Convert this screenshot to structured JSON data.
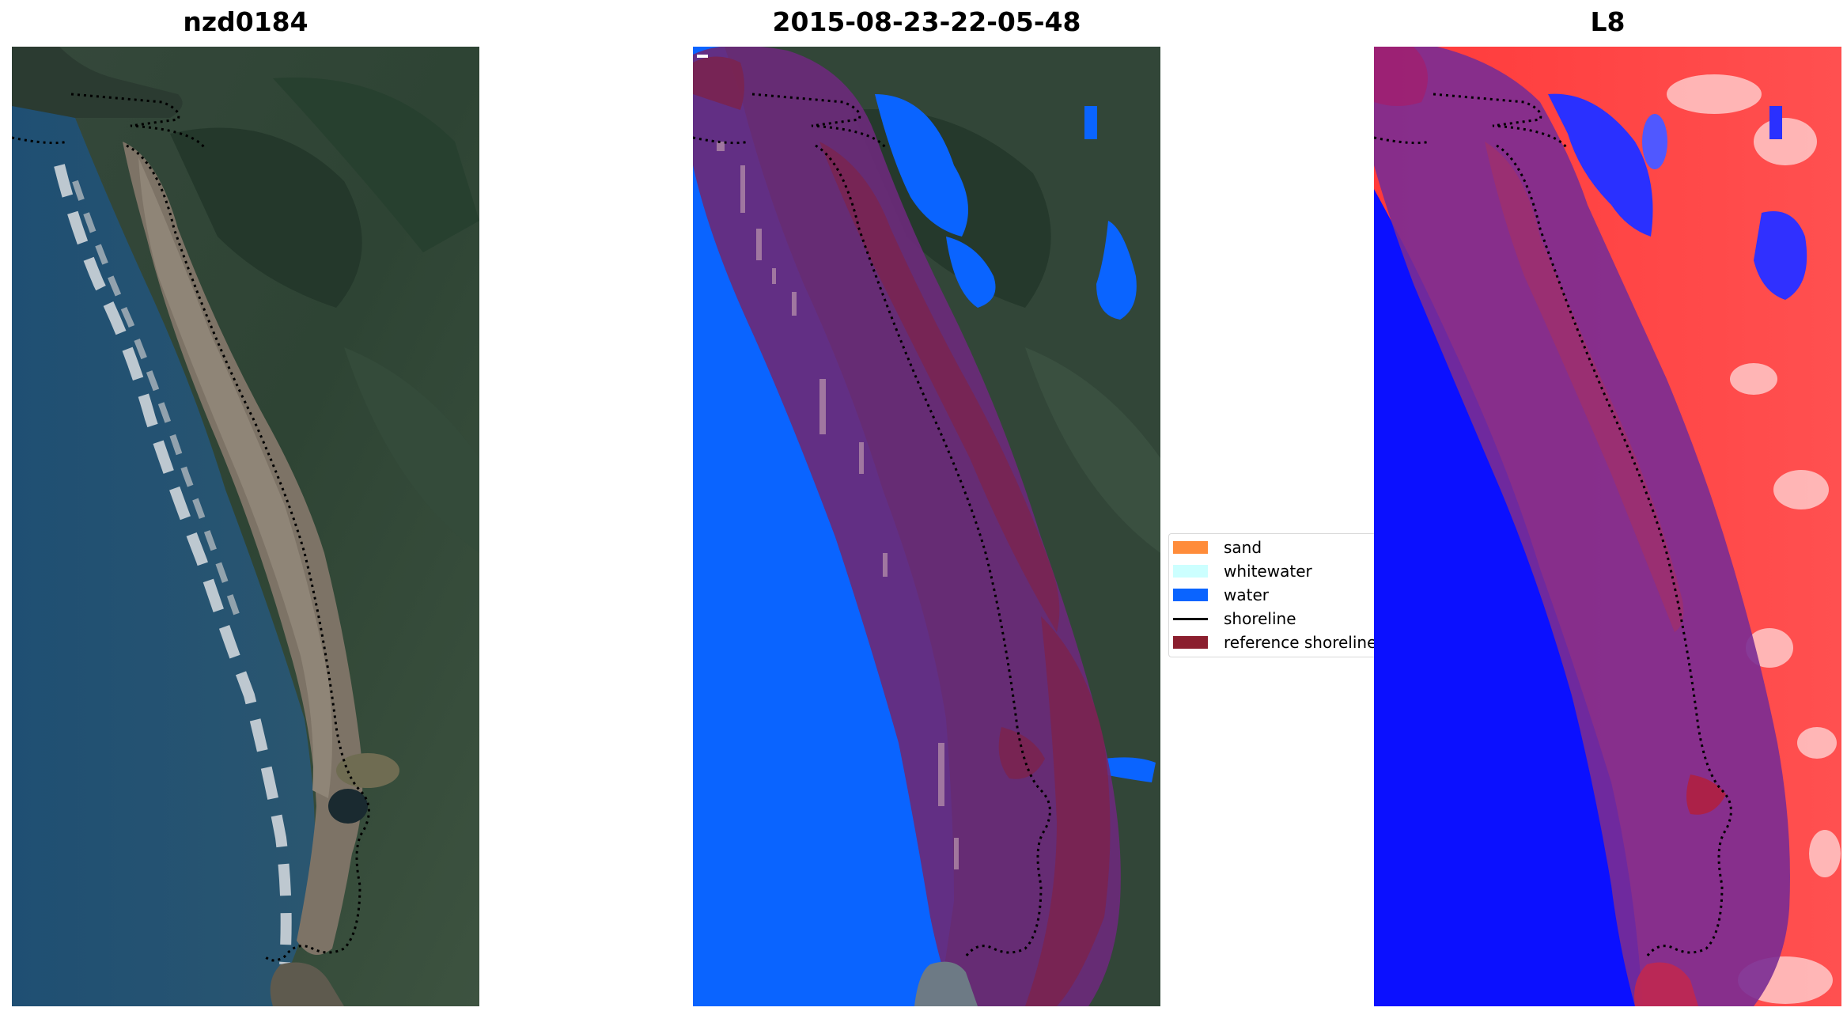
{
  "panels": [
    {
      "title": "nzd0184"
    },
    {
      "title": "2015-08-23-22-05-48"
    },
    {
      "title": "L8"
    }
  ],
  "legend": {
    "items": [
      {
        "label": "sand",
        "kind": "patch",
        "color": "#ff8c3a"
      },
      {
        "label": "whitewater",
        "kind": "patch",
        "color": "#ccffff"
      },
      {
        "label": "water",
        "kind": "patch",
        "color": "#0a64ff"
      },
      {
        "label": "shoreline",
        "kind": "line",
        "color": "#000000"
      },
      {
        "label": "reference shoreline",
        "kind": "patch",
        "color": "#8b1e2e"
      }
    ]
  },
  "colors": {
    "sea": "#20486a",
    "land_dark": "#2f4536",
    "water_class": "#0a64ff",
    "buffer_overlay": "#8b1e2e",
    "index_positive": "#ff2020",
    "index_negative": "#1010ff"
  }
}
